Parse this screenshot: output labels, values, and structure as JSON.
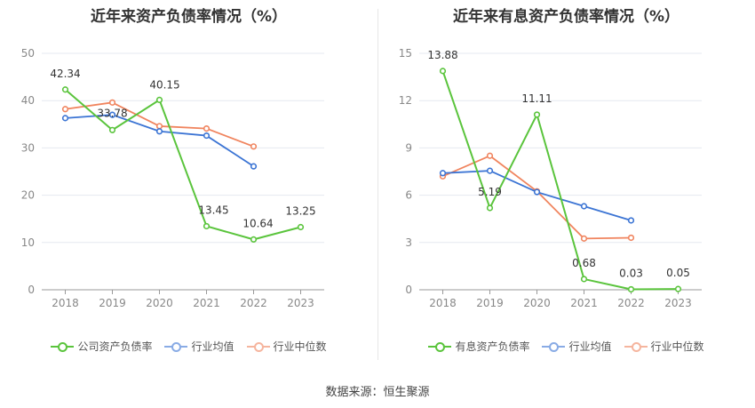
{
  "colors": {
    "company": "#5ac43c",
    "industry_avg": "#3b74d4",
    "industry_median": "#f0845e",
    "grid": "#e5e9f0",
    "axis": "#999999",
    "tick_text": "#888888",
    "label_text": "#333333"
  },
  "source_text": "数据来源：恒生聚源",
  "chart_data": [
    {
      "type": "line",
      "title": "近年来资产负债率情况（%）",
      "categories": [
        "2018",
        "2019",
        "2020",
        "2021",
        "2022",
        "2023"
      ],
      "ylim": [
        0,
        50
      ],
      "yticks": [
        0,
        10,
        20,
        30,
        40,
        50
      ],
      "ytick_labels": [
        "0",
        "10",
        "20",
        "30",
        "40",
        "50"
      ],
      "series": [
        {
          "name": "公司资产负债率",
          "key": "company",
          "values": [
            42.34,
            33.78,
            40.15,
            13.45,
            10.64,
            13.25
          ],
          "labels": [
            "42.34",
            "33.78",
            "40.15",
            "13.45",
            "10.64",
            "13.25"
          ]
        },
        {
          "name": "行业均值",
          "key": "industry_avg",
          "values": [
            36.3,
            37.0,
            33.5,
            32.6,
            26.1,
            null
          ]
        },
        {
          "name": "行业中位数",
          "key": "industry_median",
          "values": [
            38.2,
            39.6,
            34.6,
            34.1,
            30.3,
            null
          ]
        }
      ]
    },
    {
      "type": "line",
      "title": "近年来有息资产负债率情况（%）",
      "categories": [
        "2018",
        "2019",
        "2020",
        "2021",
        "2022",
        "2023"
      ],
      "ylim": [
        0,
        15
      ],
      "yticks": [
        0,
        3,
        6,
        9,
        12,
        15
      ],
      "ytick_labels": [
        "0",
        "3",
        "6",
        "9",
        "12",
        "15"
      ],
      "series": [
        {
          "name": "有息资产负债率",
          "key": "company",
          "values": [
            13.88,
            5.19,
            11.11,
            0.68,
            0.03,
            0.05
          ],
          "labels": [
            "13.88",
            "5.19",
            "11.11",
            "0.68",
            "0.03",
            "0.05"
          ]
        },
        {
          "name": "行业均值",
          "key": "industry_avg",
          "values": [
            7.4,
            7.55,
            6.2,
            5.3,
            4.4,
            null
          ]
        },
        {
          "name": "行业中位数",
          "key": "industry_median",
          "values": [
            7.2,
            8.5,
            6.25,
            3.25,
            3.3,
            null
          ]
        }
      ]
    }
  ]
}
